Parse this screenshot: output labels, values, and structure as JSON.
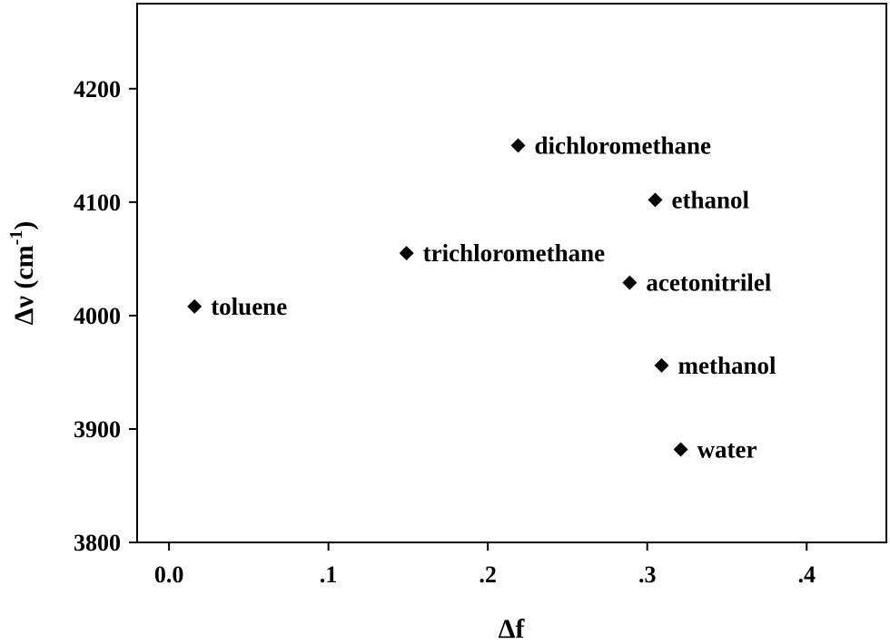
{
  "chart_data": {
    "type": "scatter",
    "title": "",
    "xlabel": "Δf",
    "ylabel": "Δν (cm",
    "ylabel_superscript": "-1",
    "ylabel_suffix": ")",
    "xlim": [
      -0.02,
      0.45
    ],
    "ylim": [
      3800,
      4275
    ],
    "x_ticks": [
      0.0,
      0.1,
      0.2,
      0.3,
      0.4
    ],
    "x_tick_labels": [
      "0.0",
      ".1",
      ".2",
      ".3",
      ".4"
    ],
    "y_ticks": [
      3800,
      3900,
      4000,
      4100,
      4200
    ],
    "y_tick_labels": [
      "3800",
      "3900",
      "4000",
      "4100",
      "4200"
    ],
    "grid": false,
    "marker": "diamond",
    "marker_color": "#000000",
    "points": [
      {
        "label": "toluene",
        "x": 0.016,
        "y": 4008
      },
      {
        "label": "trichloromethane",
        "x": 0.149,
        "y": 4055
      },
      {
        "label": "dichloromethane",
        "x": 0.219,
        "y": 4150
      },
      {
        "label": "ethanol",
        "x": 0.305,
        "y": 4102
      },
      {
        "label": "acetonitrilel",
        "x": 0.289,
        "y": 4029
      },
      {
        "label": "methanol",
        "x": 0.309,
        "y": 3956
      },
      {
        "label": "water",
        "x": 0.321,
        "y": 3882
      }
    ]
  }
}
